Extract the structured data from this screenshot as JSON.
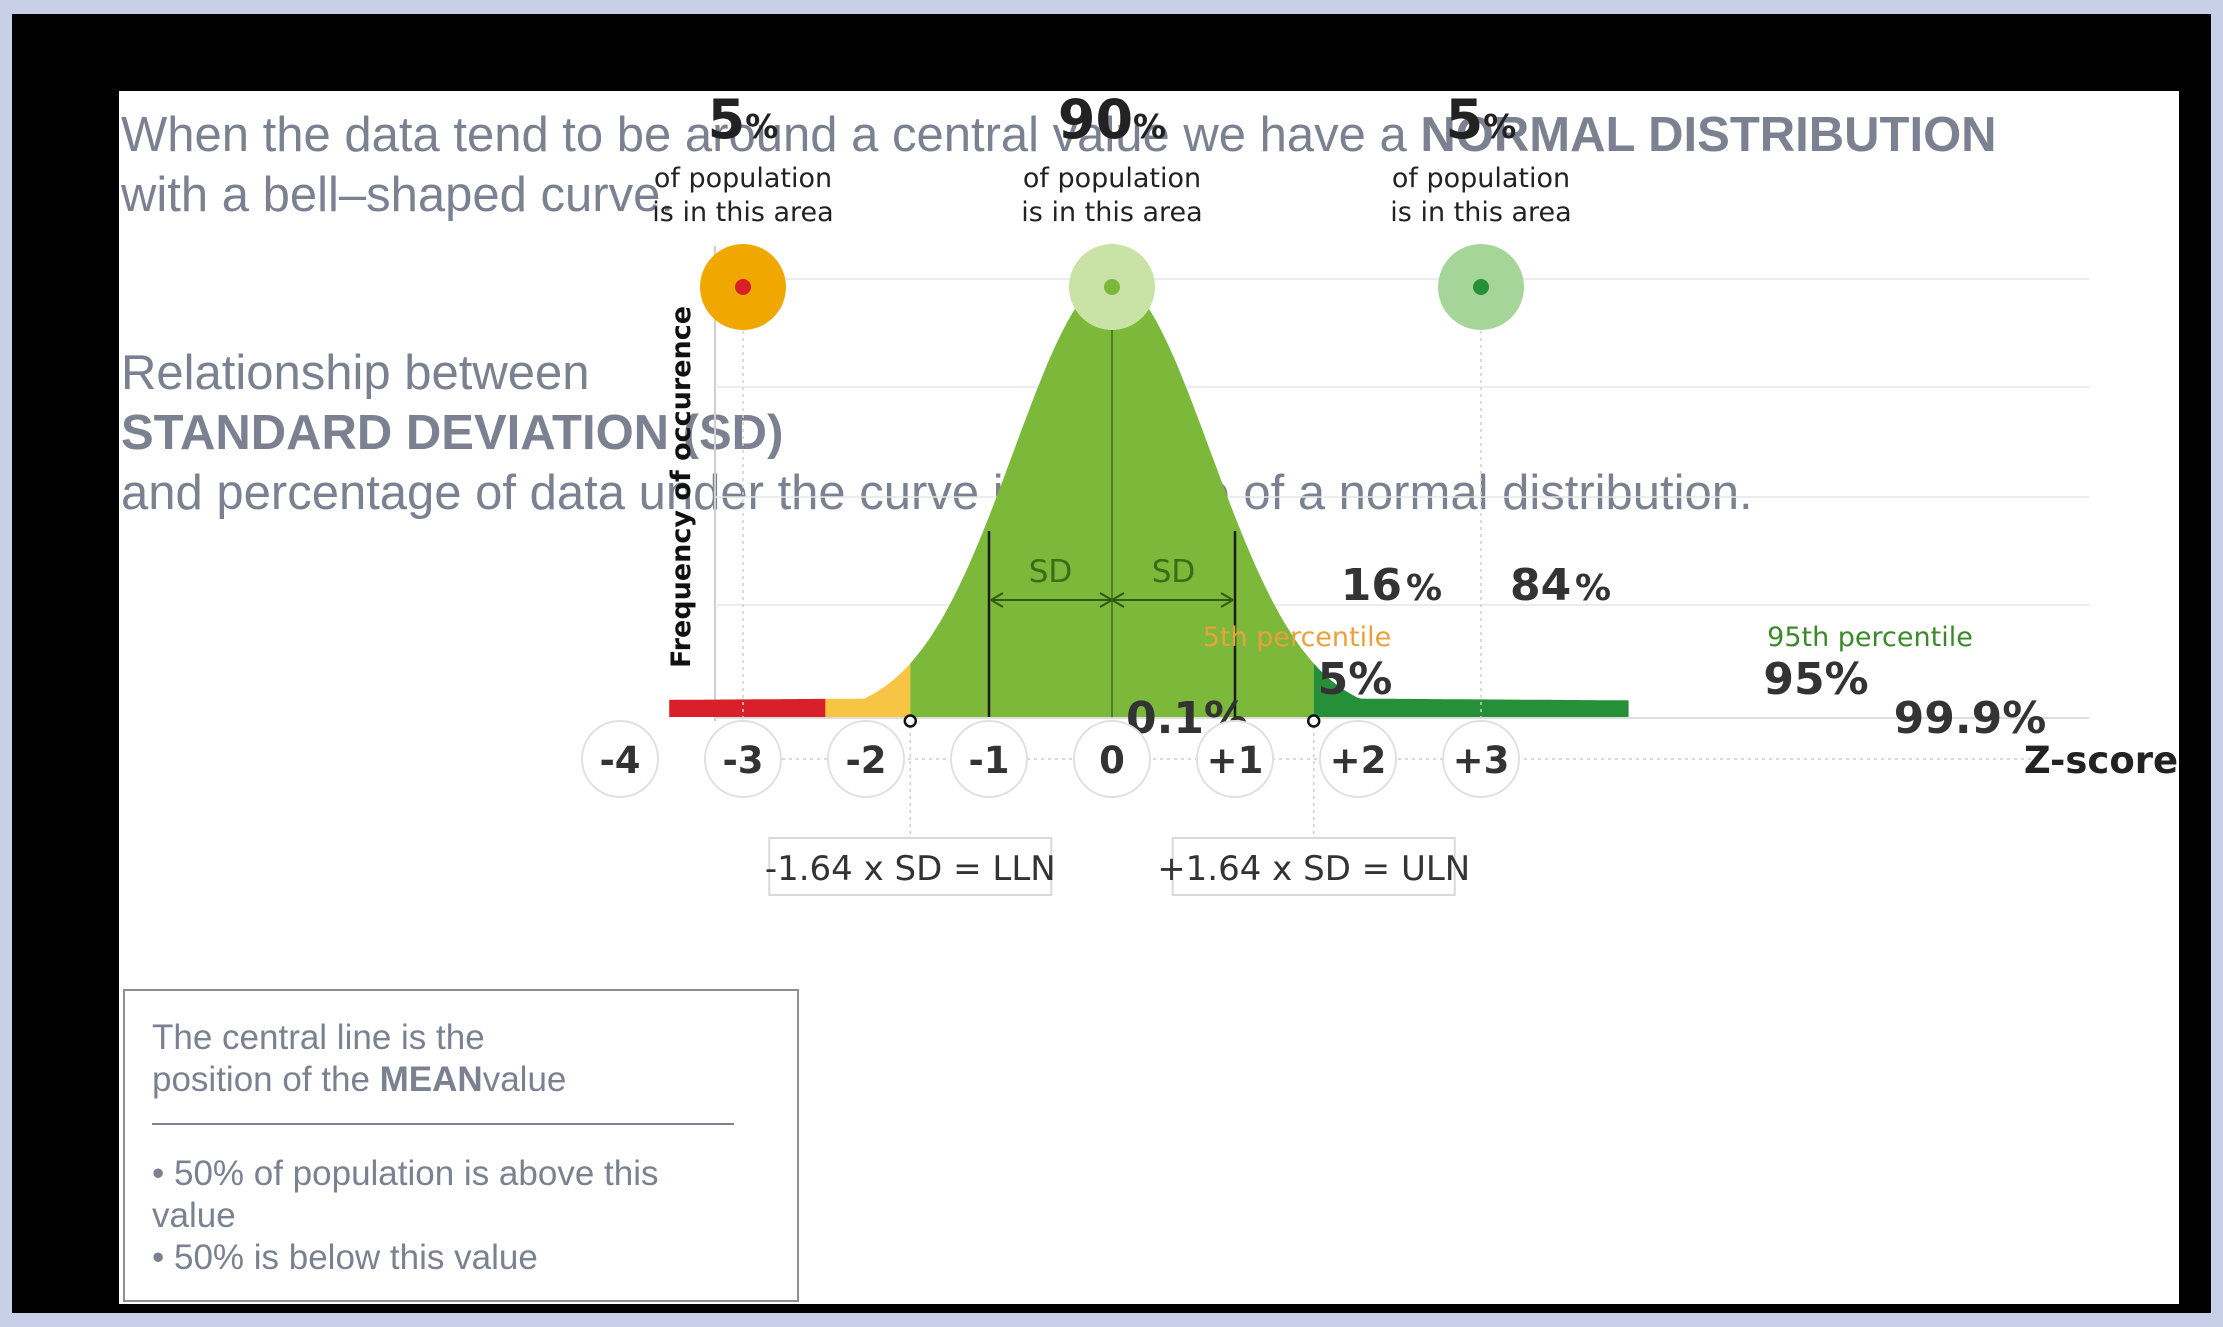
{
  "intro": {
    "p1_a": "When the data tend to be around a central value we have a ",
    "p1_strong": "NORMAL DISTRIBUTION",
    "p1_b": " with a bell–shaped curve.",
    "p2_a": "Relationship between ",
    "p2_strong": "STANDARD DEVIATION (SD)",
    "p2_b": " and percentage of data under the curve in the case of a normal distribution."
  },
  "note": {
    "line1": "The central line is the position of the ",
    "line1_strong": "MEAN",
    "line1_b": "value",
    "bullet1": "• 50% of population is above this value",
    "bullet2": "• 50% is below this value"
  },
  "chart_data": {
    "type": "area",
    "ylabel": "Frequency of occurence",
    "xlabel": "Z-score",
    "x_ticks": [
      "-4",
      "-3",
      "-2",
      "-1",
      "0",
      "+1",
      "+2",
      "+3"
    ],
    "regions": [
      {
        "from": -3.6,
        "to": -2.33,
        "color": "#d9202a",
        "label": "0.1%"
      },
      {
        "from": -2.33,
        "to": -1.64,
        "color": "#f7c443",
        "label": "5%"
      },
      {
        "from": -1.64,
        "to": 1.64,
        "color": "#7cb83a",
        "label": "90%"
      },
      {
        "from": 1.64,
        "to": 4.2,
        "color": "#259038",
        "label": "99.9%"
      }
    ],
    "top_markers": [
      {
        "z": -3,
        "value": "5",
        "unit": "%",
        "line1": "of population",
        "line2": "is in this area",
        "outer": "#f0a800",
        "dot": "#d9202a"
      },
      {
        "z": 0,
        "value": "90",
        "unit": "%",
        "line1": "of population",
        "line2": "is in this area",
        "outer": "#c9e2a6",
        "dot": "#7cb83a"
      },
      {
        "z": 3,
        "value": "5",
        "unit": "%",
        "line1": "of population",
        "line2": "is in this area",
        "outer": "#a6d59a",
        "dot": "#259038"
      }
    ],
    "labels": {
      "p16": "16",
      "p84": "84",
      "pct": "%",
      "sd_left": "SD",
      "sd_right": "SD",
      "p5th": "5th percentile",
      "p95th": "95th percentile",
      "v5": "5%",
      "v95": "95%",
      "v01": "0.1%",
      "v999": "99.9%"
    },
    "lln": "-1.64 x SD = LLN",
    "uln": "+1.64 x SD = ULN",
    "colors": {
      "red": "#d9202a",
      "yellow": "#f7c443",
      "green": "#7cb83a",
      "darkgreen": "#259038",
      "orange": "#e9a23b"
    }
  }
}
